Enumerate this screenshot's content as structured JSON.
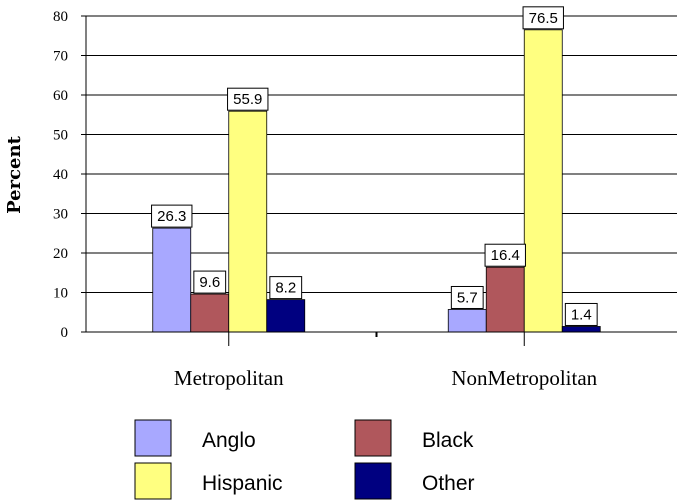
{
  "chart_data": {
    "type": "bar",
    "categories": [
      "Metropolitan",
      "NonMetropolitan"
    ],
    "series": [
      {
        "name": "Anglo",
        "values": [
          26.3,
          5.7
        ],
        "color": "#a8a8ff"
      },
      {
        "name": "Black",
        "values": [
          9.6,
          16.4
        ],
        "color": "#b0575c"
      },
      {
        "name": "Hispanic",
        "values": [
          55.9,
          76.5
        ],
        "color": "#ffff80"
      },
      {
        "name": "Other",
        "values": [
          8.2,
          1.4
        ],
        "color": "#000080"
      }
    ],
    "data_labels": [
      [
        "26.3",
        "5.7"
      ],
      [
        "9.6",
        "16.4"
      ],
      [
        "55.9",
        "76.5"
      ],
      [
        "8.2",
        "1.4"
      ]
    ],
    "yticks": [
      "0",
      "10",
      "20",
      "30",
      "40",
      "50",
      "60",
      "70",
      "80"
    ],
    "ylabel": "Percent",
    "xlabel": "",
    "ylim": [
      0,
      80
    ],
    "grid": true,
    "legend_position": "bottom"
  }
}
